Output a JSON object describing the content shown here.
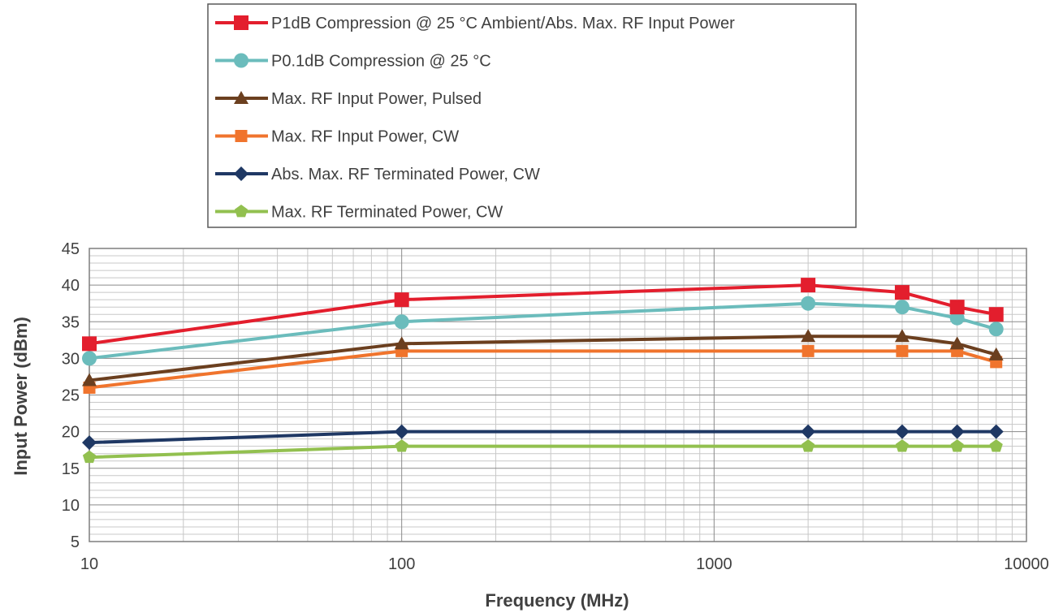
{
  "chart_data": {
    "type": "line",
    "xscale": "log",
    "xlabel": "Frequency (MHz)",
    "ylabel": "Input Power (dBm)",
    "xlim": [
      10,
      10000
    ],
    "ylim": [
      5,
      45
    ],
    "x_ticks": [
      "10",
      "100",
      "1000",
      "10000"
    ],
    "y_ticks": [
      "5",
      "10",
      "15",
      "20",
      "25",
      "30",
      "35",
      "40",
      "45"
    ],
    "grid": true,
    "legend_position": "top",
    "series": [
      {
        "name": "P1dB Compression @ 25 °C Ambient/Abs. Max. RF Input Power",
        "color": "#e31e2d",
        "marker": "square",
        "points": [
          [
            10,
            32
          ],
          [
            100,
            38
          ],
          [
            2000,
            40
          ],
          [
            4000,
            39
          ],
          [
            6000,
            37
          ],
          [
            8000,
            36
          ]
        ]
      },
      {
        "name": "P0.1dB Compression @ 25 °C",
        "color": "#6bbcbc",
        "marker": "circle",
        "points": [
          [
            10,
            30
          ],
          [
            100,
            35
          ],
          [
            2000,
            37.5
          ],
          [
            4000,
            37
          ],
          [
            6000,
            35.5
          ],
          [
            8000,
            34
          ]
        ]
      },
      {
        "name": "Max. RF Input Power, Pulsed",
        "color": "#6b3f1f",
        "marker": "triangle",
        "points": [
          [
            10,
            27
          ],
          [
            100,
            32
          ],
          [
            2000,
            33
          ],
          [
            4000,
            33
          ],
          [
            6000,
            32
          ],
          [
            8000,
            30.5
          ]
        ]
      },
      {
        "name": "Max. RF Input Power, CW",
        "color": "#f0742d",
        "marker": "square-small",
        "points": [
          [
            10,
            26
          ],
          [
            100,
            31
          ],
          [
            2000,
            31
          ],
          [
            4000,
            31
          ],
          [
            6000,
            31
          ],
          [
            8000,
            29.5
          ]
        ]
      },
      {
        "name": "Abs. Max. RF Terminated Power, CW",
        "color": "#1f3864",
        "marker": "diamond",
        "points": [
          [
            10,
            18.5
          ],
          [
            100,
            20
          ],
          [
            2000,
            20
          ],
          [
            4000,
            20
          ],
          [
            6000,
            20
          ],
          [
            8000,
            20
          ]
        ]
      },
      {
        "name": "Max. RF Terminated Power, CW",
        "color": "#92c04f",
        "marker": "pentagon",
        "points": [
          [
            10,
            16.5
          ],
          [
            100,
            18
          ],
          [
            2000,
            18
          ],
          [
            4000,
            18
          ],
          [
            6000,
            18
          ],
          [
            8000,
            18
          ]
        ]
      }
    ]
  }
}
